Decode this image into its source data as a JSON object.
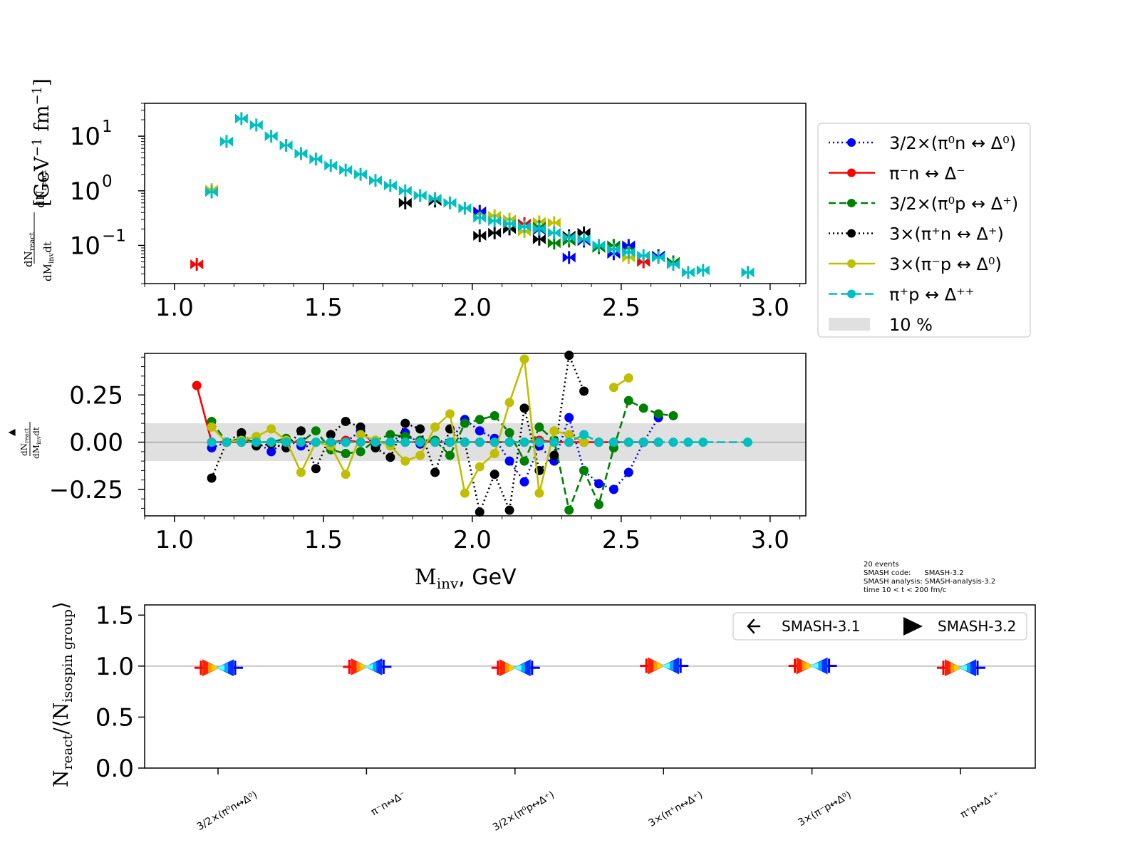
{
  "colors": {
    "pi0n": "#0000ff",
    "pimn": "#ff0000",
    "pi0p": "#008000",
    "pipn": "#000000",
    "pimp": "#bfbf00",
    "pipp": "#00bfbf",
    "band": "#e0e0e0"
  },
  "legend": {
    "entries": [
      "3/2×(π⁰n ↔ Δ⁰)",
      "π⁻n ↔ Δ⁻",
      "3/2×(π⁰p ↔ Δ⁺)",
      "3×(π⁺n ↔ Δ⁺)",
      "3×(π⁻p ↔ Δ⁰)",
      "π⁺p ↔ Δ⁺⁺",
      "10 %"
    ],
    "versions": [
      "SMASH-3.1",
      "SMASH-3.2"
    ]
  },
  "info": {
    "events": "20 events",
    "code": "SMASH code:      SMASH-3.2",
    "analysis": "SMASH analysis: SMASH-analysis-3.2",
    "time": "time 10 < t < 200 fm/c"
  },
  "chart_data": [
    {
      "type": "scatter",
      "yscale": "log",
      "xlim": [
        0.9,
        3.12
      ],
      "ylim": [
        0.02,
        40
      ],
      "xticks": [
        "1.0",
        "1.5",
        "2.0",
        "2.5",
        "3.0"
      ],
      "ylabel": "dN_react/dM_inv dt [GeV⁻¹ fm⁻¹]",
      "x": [
        1.075,
        1.125,
        1.175,
        1.225,
        1.275,
        1.325,
        1.375,
        1.425,
        1.475,
        1.525,
        1.575,
        1.625,
        1.675,
        1.725,
        1.775,
        1.825,
        1.875,
        1.925,
        1.975,
        2.025,
        2.075,
        2.125,
        2.175,
        2.225,
        2.275,
        2.325,
        2.375,
        2.425,
        2.475,
        2.525,
        2.575,
        2.625,
        2.675,
        2.725,
        2.775,
        2.925
      ],
      "series": [
        {
          "name": "π⁺p ↔ Δ⁺⁺",
          "key": "pipp",
          "y": [
            null,
            0.95,
            8.0,
            21.0,
            16.0,
            10.0,
            6.8,
            4.8,
            3.8,
            2.9,
            2.4,
            2.0,
            1.55,
            1.25,
            1.0,
            0.82,
            0.72,
            0.6,
            0.48,
            0.32,
            0.28,
            0.25,
            0.22,
            0.2,
            0.17,
            0.14,
            0.13,
            0.1,
            0.085,
            0.075,
            0.065,
            0.06,
            0.045,
            0.032,
            0.035,
            0.032
          ]
        },
        {
          "name": "SMASH-3.1 π⁻n",
          "key": "pimn",
          "y": [
            0.045,
            null,
            null,
            null,
            null,
            null,
            null,
            null,
            null,
            null,
            null,
            null,
            null,
            null,
            null,
            null,
            null,
            null,
            null,
            null,
            null,
            null,
            0.25,
            null,
            null,
            null,
            null,
            null,
            null,
            null,
            0.05,
            null,
            null,
            null,
            null,
            null
          ]
        },
        {
          "name": "3×(π⁻p ↔ Δ⁰)",
          "key": "pimp",
          "y": [
            null,
            1.05,
            null,
            null,
            null,
            null,
            null,
            null,
            null,
            null,
            null,
            null,
            null,
            null,
            null,
            null,
            null,
            null,
            null,
            0.38,
            0.35,
            0.3,
            0.18,
            0.27,
            0.26,
            null,
            null,
            null,
            0.1,
            0.06,
            null,
            null,
            null,
            null,
            null,
            null
          ]
        },
        {
          "name": "3×(π⁺n ↔ Δ⁺)",
          "key": "pipn",
          "y": [
            null,
            null,
            null,
            null,
            null,
            null,
            null,
            null,
            null,
            null,
            null,
            null,
            null,
            null,
            0.6,
            null,
            0.65,
            null,
            null,
            0.15,
            0.17,
            0.2,
            null,
            0.13,
            null,
            0.15,
            0.17,
            null,
            null,
            null,
            null,
            null,
            null,
            null,
            null,
            null
          ]
        },
        {
          "name": "3/2×(π⁰p ↔ Δ⁺)",
          "key": "pi0p",
          "y": [
            null,
            null,
            null,
            null,
            null,
            null,
            null,
            null,
            null,
            null,
            null,
            null,
            null,
            null,
            null,
            null,
            null,
            null,
            null,
            null,
            null,
            null,
            null,
            0.22,
            0.11,
            0.12,
            null,
            0.09,
            0.1,
            0.09,
            null,
            null,
            0.05,
            null,
            null,
            null
          ]
        },
        {
          "name": "3/2×(π⁰n ↔ Δ⁰)",
          "key": "pi0n",
          "y": [
            null,
            null,
            null,
            null,
            null,
            null,
            null,
            null,
            null,
            null,
            null,
            null,
            null,
            null,
            null,
            null,
            null,
            null,
            null,
            0.42,
            null,
            null,
            null,
            0.19,
            null,
            0.06,
            0.12,
            null,
            0.07,
            0.1,
            null,
            0.065,
            null,
            null,
            null,
            null
          ]
        }
      ]
    },
    {
      "type": "line",
      "xlim": [
        0.9,
        3.12
      ],
      "ylim": [
        -0.39,
        0.47
      ],
      "xticks": [
        "1.0",
        "1.5",
        "2.0",
        "2.5",
        "3.0"
      ],
      "yticks": [
        "−0.25",
        "0.00",
        "0.25"
      ],
      "xlabel": "M_inv, GeV",
      "ylabel": "▲ dN_react/dM_inv dt",
      "band": [
        -0.1,
        0.1
      ],
      "x": [
        1.075,
        1.125,
        1.175,
        1.225,
        1.275,
        1.325,
        1.375,
        1.425,
        1.475,
        1.525,
        1.575,
        1.625,
        1.675,
        1.725,
        1.775,
        1.825,
        1.875,
        1.925,
        1.975,
        2.025,
        2.075,
        2.125,
        2.175,
        2.225,
        2.275,
        2.325,
        2.375,
        2.425,
        2.475,
        2.525,
        2.575,
        2.625,
        2.675,
        2.725,
        2.775,
        2.925
      ],
      "series": [
        {
          "name": "3/2×(π⁰n ↔ Δ⁰)",
          "key": "pi0n",
          "dash": "2,4",
          "y": [
            null,
            -0.03,
            0.0,
            0.01,
            0.0,
            -0.05,
            0.01,
            -0.02,
            0.0,
            -0.01,
            0.0,
            0.06,
            -0.02,
            0.0,
            0.05,
            -0.01,
            0.01,
            0.0,
            0.12,
            0.06,
            0.02,
            -0.1,
            -0.21,
            -0.02,
            -0.1,
            0.13,
            -0.15,
            -0.22,
            -0.25,
            -0.16,
            0.0,
            0.13,
            null,
            null,
            null,
            null
          ]
        },
        {
          "name": "π⁻n ↔ Δ⁻",
          "key": "pimn",
          "dash": "",
          "y": [
            0.3,
            0.0,
            0.0,
            0.0,
            0.0,
            0.0,
            0.0,
            0.0,
            0.0,
            0.0,
            0.01,
            0.0,
            0.0,
            0.0,
            0.0,
            0.0,
            0.0,
            0.0,
            0.0,
            0.0,
            0.0,
            0.0,
            0.0,
            0.01,
            0.0,
            0.0,
            0.0,
            0.0,
            0.0,
            0.0,
            0.0,
            0.0,
            null,
            null,
            null,
            null
          ]
        },
        {
          "name": "3/2×(π⁰p ↔ Δ⁺)",
          "key": "pi0p",
          "dash": "10,5",
          "y": [
            null,
            0.11,
            0.0,
            0.02,
            0.0,
            0.0,
            0.02,
            0.0,
            0.06,
            -0.04,
            -0.06,
            -0.05,
            0.01,
            0.04,
            0.03,
            0.01,
            0.01,
            -0.07,
            0.1,
            0.12,
            0.14,
            0.05,
            -0.1,
            0.08,
            0.01,
            -0.36,
            -0.15,
            -0.33,
            -0.03,
            0.22,
            0.18,
            0.15,
            0.14,
            null,
            null,
            null
          ]
        },
        {
          "name": "3×(π⁺n ↔ Δ⁺)",
          "key": "pipn",
          "dash": "2,4",
          "y": [
            null,
            -0.19,
            0.0,
            0.05,
            -0.02,
            -0.01,
            -0.03,
            0.06,
            -0.14,
            0.04,
            0.11,
            0.08,
            -0.03,
            -0.08,
            0.1,
            0.07,
            -0.16,
            0.07,
            0.0,
            -0.37,
            -0.17,
            -0.36,
            0.18,
            -0.15,
            -0.07,
            0.46,
            0.27,
            null,
            null,
            null,
            null,
            null,
            null,
            null,
            null,
            null
          ]
        },
        {
          "name": "3×(π⁻p ↔ Δ⁰)",
          "key": "pimp",
          "dash": "",
          "y": [
            null,
            0.08,
            0.0,
            0.01,
            0.03,
            0.07,
            0.01,
            -0.16,
            0.0,
            -0.02,
            -0.17,
            0.04,
            0.01,
            -0.02,
            -0.1,
            -0.07,
            0.08,
            0.15,
            -0.27,
            -0.13,
            -0.06,
            0.21,
            0.44,
            -0.27,
            0.06,
            0.04,
            0.0,
            null,
            0.29,
            0.34,
            null,
            null,
            null,
            null,
            null,
            null
          ]
        },
        {
          "name": "π⁺p ↔ Δ⁺⁺",
          "key": "pipp",
          "dash": "12,5",
          "y": [
            null,
            0.0,
            0.0,
            0.0,
            0.0,
            0.0,
            0.0,
            0.0,
            0.0,
            0.0,
            0.0,
            0.0,
            0.0,
            0.0,
            0.0,
            0.0,
            0.0,
            0.0,
            0.0,
            0.0,
            0.0,
            0.0,
            0.0,
            0.0,
            0.0,
            0.0,
            0.04,
            0.0,
            0.0,
            0.0,
            0.0,
            0.0,
            0.0,
            0.0,
            0.0,
            0.0
          ]
        }
      ]
    },
    {
      "type": "scatter",
      "ylim": [
        0.0,
        1.6
      ],
      "yticks": [
        "0.0",
        "0.5",
        "1.0",
        "1.5"
      ],
      "ylabel": "N_react/⟨N_isospin group⟩",
      "categories": [
        "3/2×(π⁰n↔Δ⁰)",
        "π⁻n↔Δ⁻",
        "3/2×(π⁰p↔Δ⁺)",
        "3×(π⁺n↔Δ⁺)",
        "3×(π⁻p↔Δ⁰)",
        "π⁺p↔Δ⁺⁺"
      ],
      "values": [
        0.99,
        1.0,
        0.99,
        1.01,
        1.01,
        0.99
      ],
      "refline": 1.0
    }
  ]
}
